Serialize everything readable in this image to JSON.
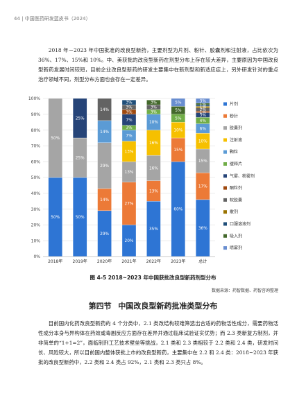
{
  "header": {
    "text": "44 | 中国医药研发蓝皮书（2024）"
  },
  "paragraph1": "2018 年－2023 年中国批准的改良型新药，主要剂型为片剂、粉针、胶囊剂和注射液，占比依次为 36%、17%、15%和 10%。中、美获批的改良型新药在剂型分布上存在较大差异，主要原因为中国改良型新药发展时间较短，目前企业改良型新药的研发主要集中在新剂型和新适应症上，另外研发针对的重点治疗领域不同，剂型分布方面也会存在一定差异。",
  "figure": {
    "caption": "图 4-5 2018~2023 年中国获批改良型新药剂型分布",
    "source": "数据来源：药智数据、药智咨询整理"
  },
  "section": {
    "number": "第四节",
    "title": "中国改良型新药批准类型分布"
  },
  "paragraph2": "目前国内化药改良型新药的 4 个分类中，2.1 类改结构较难筛选出合适的药物活性成分，需要药物活性成分本身与异构体在药效或毒副反应方面存在差异并通过临床试验证实优势；而 2.3 类新复方制剂，并非简单的“1+1=2”，面临制剂工艺技术壁垒等挑战，2.1 类和 2.3 类相较于 2.2 类和 2.4 类，研发时间长、风险较大，所以目前国内整体获批上市的改良型新药，主要集中在 2.2 和 2.4 类：2018~2023 年获批的改良型新药中，2.2 类和 2.4 类占 92%，2.1 类和 2.3 类只占 8%。",
  "colors": {
    "片剂": "#2E75D4",
    "粉针": "#EC7A37",
    "胶囊剂": "#A5A5A5",
    "注射液": "#F6C000",
    "颗粒": "#5B9BD5",
    "缓释片": "#70AD47",
    "气雾、粉雾剂": "#264478",
    "酮粒剂": "#9E480E",
    "软胶囊": "#636363",
    "散剂": "#997300",
    "口服溶液剂": "#1F4E79",
    "吸入剂": "#43682B",
    "喷雾剂": "#698ED0"
  },
  "chart_data": {
    "type": "bar",
    "stacked": true,
    "normalized": true,
    "categories": [
      "2018年",
      "2019年",
      "2020年",
      "2021年",
      "2022年",
      "2023年",
      "总计"
    ],
    "ylim": [
      0,
      100
    ],
    "yticks": [
      "0%",
      "10%",
      "20%",
      "30%",
      "40%",
      "50%",
      "60%",
      "70%",
      "80%",
      "90%",
      "100%"
    ],
    "legend_position": "right",
    "series": [
      {
        "name": "片剂",
        "values": [
          50,
          50,
          29,
          20,
          35,
          60,
          36
        ],
        "labels": [
          "50%",
          "50%",
          "29%",
          "20%",
          "35%",
          "60%",
          "36%"
        ]
      },
      {
        "name": "粉针",
        "values": [
          0,
          0,
          14,
          27,
          13,
          15,
          17
        ],
        "labels": [
          "",
          "",
          "14%",
          "27%",
          "13%",
          "15%",
          "17%"
        ]
      },
      {
        "name": "胶囊剂",
        "values": [
          50,
          25,
          29,
          13,
          16,
          0,
          15
        ],
        "labels": [
          "50%",
          "25%",
          "29%",
          "13%",
          "16%",
          "",
          "15%"
        ]
      },
      {
        "name": "注射液",
        "values": [
          0,
          0,
          0,
          13,
          16,
          10,
          10
        ],
        "labels": [
          "",
          "",
          "",
          "13%",
          "16%",
          "10%",
          "10%"
        ]
      },
      {
        "name": "颗粒",
        "values": [
          0,
          0,
          14,
          7,
          10,
          0,
          6
        ],
        "labels": [
          "",
          "",
          "14%",
          "7%",
          "10%",
          "",
          "6%"
        ]
      },
      {
        "name": "缓释片",
        "values": [
          0,
          0,
          0,
          3,
          3,
          5,
          4
        ],
        "labels": [
          "",
          "",
          "",
          "3%",
          "3%",
          "5%",
          "4%"
        ]
      },
      {
        "name": "气雾、粉雾剂",
        "values": [
          0,
          25,
          0,
          7,
          0,
          0,
          3
        ],
        "labels": [
          "",
          "25%",
          "",
          "7%",
          "",
          "",
          "3%"
        ]
      },
      {
        "name": "酮粒剂",
        "values": [
          0,
          0,
          0,
          3,
          0,
          0,
          1
        ],
        "labels": [
          "",
          "",
          "",
          "3%",
          "",
          "",
          "1%"
        ]
      },
      {
        "name": "软胶囊",
        "values": [
          0,
          0,
          14,
          3,
          3,
          0,
          2
        ],
        "labels": [
          "",
          "",
          "14%",
          "3%",
          "3%",
          "",
          "2%"
        ]
      },
      {
        "name": "散剂",
        "values": [
          0,
          0,
          0,
          0,
          0,
          0,
          1
        ],
        "labels": [
          "",
          "",
          "",
          "",
          "",
          "",
          "1%"
        ]
      },
      {
        "name": "口服溶液剂",
        "values": [
          0,
          0,
          0,
          3,
          0,
          0,
          1
        ],
        "labels": [
          "",
          "",
          "",
          "3%",
          "",
          "",
          "1%"
        ]
      },
      {
        "name": "吸入剂",
        "values": [
          0,
          0,
          0,
          0,
          3,
          5,
          1
        ],
        "labels": [
          "",
          "",
          "",
          "",
          "3%",
          "5%",
          "1%"
        ]
      },
      {
        "name": "喷雾剂",
        "values": [
          0,
          0,
          0,
          0,
          0,
          5,
          3
        ],
        "labels": [
          "",
          "",
          "",
          "",
          "",
          "5%",
          "3%"
        ]
      }
    ]
  }
}
